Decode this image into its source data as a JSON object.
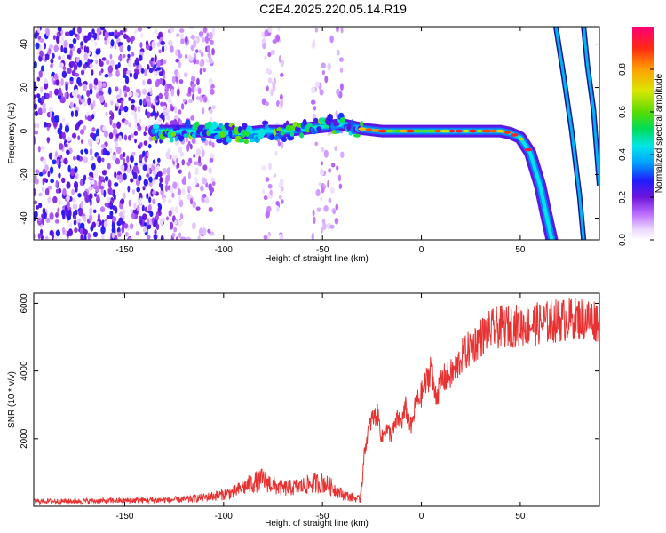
{
  "title": "C2E4.2025.220.05.14.R19",
  "chart_data": [
    {
      "type": "heatmap",
      "xlabel": "Height of straight line (km)",
      "ylabel": "Frequency (Hz)",
      "xlim": [
        -196,
        90
      ],
      "ylim": [
        -50,
        48
      ],
      "xticks": [
        -150,
        -100,
        -50,
        0,
        50
      ],
      "yticks": [
        -40,
        -20,
        0,
        20,
        40
      ],
      "colorbar": {
        "label": "Normalized spectral amplitude",
        "range": [
          0,
          1
        ],
        "ticks": [
          0.0,
          0.2,
          0.4,
          0.6,
          0.8
        ]
      },
      "main_ridge": {
        "x": [
          -135,
          -125,
          -110,
          -100,
          -90,
          -80,
          -70,
          -60,
          -50,
          -40,
          -30,
          -20,
          -10,
          0,
          10,
          20,
          30,
          40,
          45,
          50,
          55,
          60,
          63,
          66
        ],
        "y": [
          0,
          0,
          0,
          -1,
          -1,
          0,
          0,
          1,
          2,
          3,
          1,
          0,
          0,
          0,
          0,
          0,
          0,
          0,
          -1,
          -3,
          -10,
          -25,
          -38,
          -50
        ]
      },
      "steep_tracks": [
        {
          "x": [
            68,
            72,
            76,
            80,
            82
          ],
          "y": [
            48,
            25,
            0,
            -30,
            -50
          ]
        },
        {
          "x": [
            82,
            84,
            87,
            90
          ],
          "y": [
            48,
            30,
            10,
            -25
          ]
        }
      ],
      "noise_regions": [
        {
          "x_range": [
            -196,
            -130
          ],
          "y_range": [
            -50,
            48
          ],
          "intensity": "low-to-moderate"
        },
        {
          "x_range": [
            -130,
            -105
          ],
          "y_range": [
            -50,
            48
          ],
          "intensity": "low"
        },
        {
          "x_range": [
            -80,
            -70
          ],
          "y_range": [
            -50,
            48
          ],
          "intensity": "faint"
        },
        {
          "x_range": [
            -55,
            -40
          ],
          "y_range": [
            -50,
            48
          ],
          "intensity": "faint"
        }
      ]
    },
    {
      "type": "line",
      "xlabel": "Height of straight line (km)",
      "ylabel": "SNR (10 * v/v)",
      "xlim": [
        -196,
        90
      ],
      "ylim": [
        0,
        6300
      ],
      "xticks": [
        -150,
        -100,
        -50,
        0,
        50
      ],
      "yticks": [
        2000,
        4000,
        6000
      ],
      "color": "#e83232",
      "series": [
        {
          "x": [
            -196,
            -180,
            -160,
            -140,
            -120,
            -110,
            -100,
            -95,
            -90,
            -85,
            -80,
            -75,
            -70,
            -65,
            -60,
            -55,
            -50,
            -45,
            -40,
            -35,
            -31,
            -29,
            -27,
            -25,
            -22,
            -20,
            -18,
            -15,
            -12,
            -10,
            -8,
            -5,
            -3,
            0,
            2,
            4,
            5,
            6,
            8,
            10,
            12,
            15,
            18,
            20,
            25,
            30,
            35,
            40,
            50,
            60,
            70,
            80,
            90
          ],
          "y": [
            150,
            150,
            160,
            180,
            200,
            260,
            350,
            420,
            560,
            700,
            800,
            620,
            520,
            560,
            600,
            680,
            700,
            560,
            350,
            260,
            200,
            1500,
            2200,
            2600,
            2700,
            2000,
            2300,
            2100,
            2600,
            2500,
            2900,
            2300,
            3000,
            3300,
            3600,
            3900,
            4300,
            3500,
            3300,
            3700,
            3800,
            3900,
            4100,
            4400,
            4700,
            5000,
            5200,
            5300,
            5350,
            5400,
            5500,
            5550,
            5500
          ]
        }
      ]
    }
  ]
}
